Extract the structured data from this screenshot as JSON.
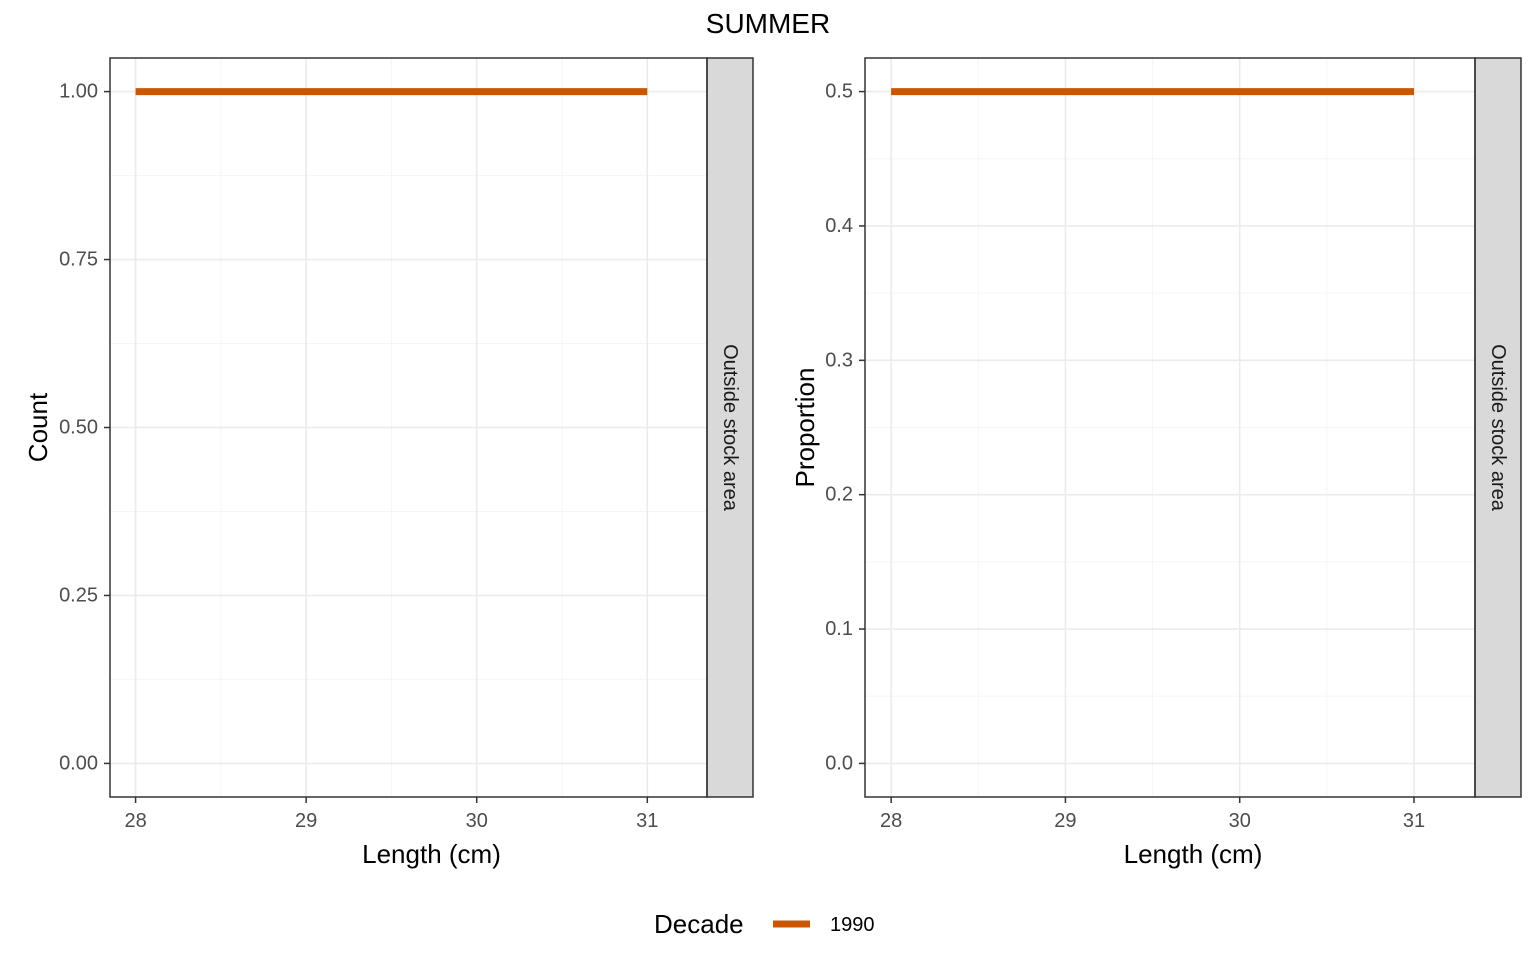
{
  "title": "SUMMER",
  "colors": {
    "series": "#cc5500",
    "grid_major": "#ebebeb",
    "grid_minor": "#f5f5f5",
    "strip_fill": "#d9d9d9",
    "panel_border": "#333333"
  },
  "legend": {
    "title": "Decade",
    "position": "bottom",
    "entries": [
      {
        "label": "1990"
      }
    ]
  },
  "chart_data": [
    {
      "type": "line",
      "xlabel": "Length (cm)",
      "ylabel": "Count",
      "strip_label": "Outside stock area",
      "xlim": [
        27.85,
        31.35
      ],
      "ylim": [
        -0.05,
        1.05
      ],
      "x_ticks": [
        28,
        29,
        30,
        31
      ],
      "x_tick_labels": [
        "28",
        "29",
        "30",
        "31"
      ],
      "y_ticks": [
        0,
        0.25,
        0.5,
        0.75,
        1
      ],
      "y_tick_labels": [
        "0.00",
        "0.25",
        "0.50",
        "0.75",
        "1.00"
      ],
      "grid": true,
      "series": [
        {
          "name": "1990",
          "x": [
            28,
            31
          ],
          "y": [
            1,
            1
          ]
        }
      ]
    },
    {
      "type": "line",
      "xlabel": "Length (cm)",
      "ylabel": "Proportion",
      "strip_label": "Outside stock area",
      "xlim": [
        27.85,
        31.35
      ],
      "ylim": [
        -0.025,
        0.525
      ],
      "x_ticks": [
        28,
        29,
        30,
        31
      ],
      "x_tick_labels": [
        "28",
        "29",
        "30",
        "31"
      ],
      "y_ticks": [
        0,
        0.1,
        0.2,
        0.3,
        0.4,
        0.5
      ],
      "y_tick_labels": [
        "0.0",
        "0.1",
        "0.2",
        "0.3",
        "0.4",
        "0.5"
      ],
      "grid": true,
      "series": [
        {
          "name": "1990",
          "x": [
            28,
            31
          ],
          "y": [
            0.5,
            0.5
          ]
        }
      ]
    }
  ]
}
